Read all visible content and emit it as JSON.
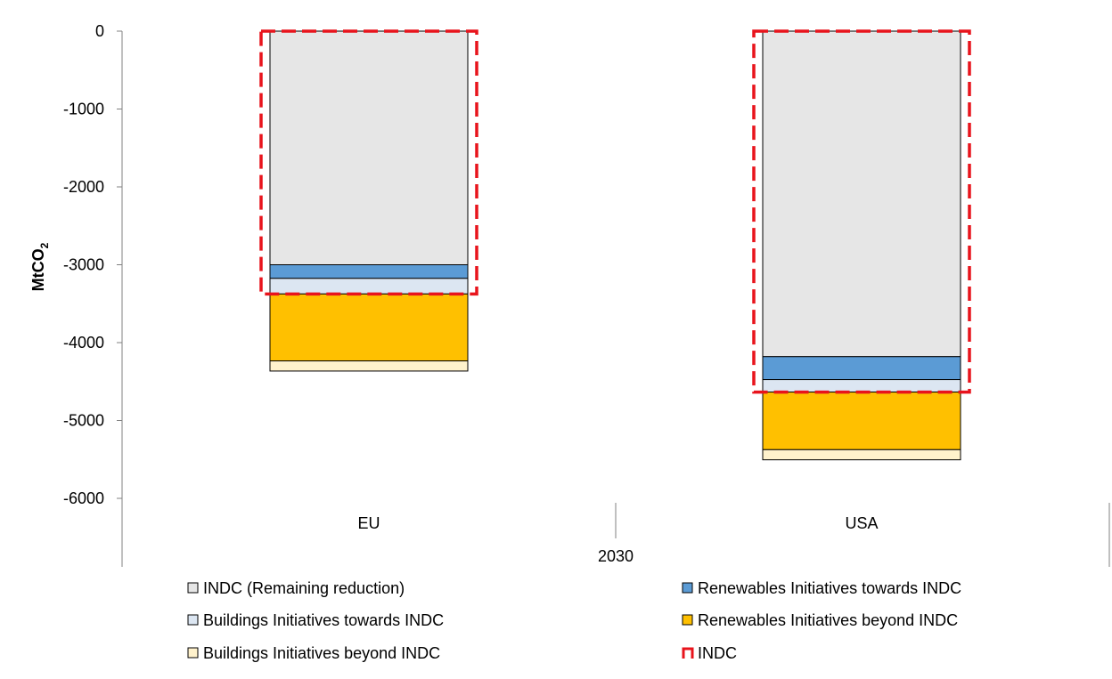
{
  "chart_data": {
    "type": "bar",
    "stacked": true,
    "ylabel_main": "MtCO",
    "ylabel_sub": "2",
    "ylim": [
      -6000,
      0
    ],
    "yticks": [
      0,
      -1000,
      -2000,
      -3000,
      -4000,
      -5000,
      -6000
    ],
    "grid": false,
    "group_label": "2030",
    "categories": [
      "EU",
      "USA"
    ],
    "series": [
      {
        "name": "INDC (Remaining reduction)",
        "color": "#e6e6e6",
        "values": [
          -3000,
          -4180
        ]
      },
      {
        "name": "Renewables Initiatives towards INDC",
        "color": "#5b9bd5",
        "values": [
          -175,
          -295
        ]
      },
      {
        "name": "Buildings Initiatives towards INDC",
        "color": "#dce6f2",
        "values": [
          -200,
          -160
        ]
      },
      {
        "name": "Renewables Initiatives beyond INDC",
        "color": "#ffc000",
        "values": [
          -860,
          -740
        ]
      },
      {
        "name": "Buildings Initiatives beyond INDC",
        "color": "#fff2cc",
        "values": [
          -130,
          -130
        ]
      }
    ],
    "indc": {
      "name": "INDC",
      "color": "#e8141c",
      "values": [
        -3375,
        -4635
      ]
    },
    "legend_position": "bottom"
  }
}
